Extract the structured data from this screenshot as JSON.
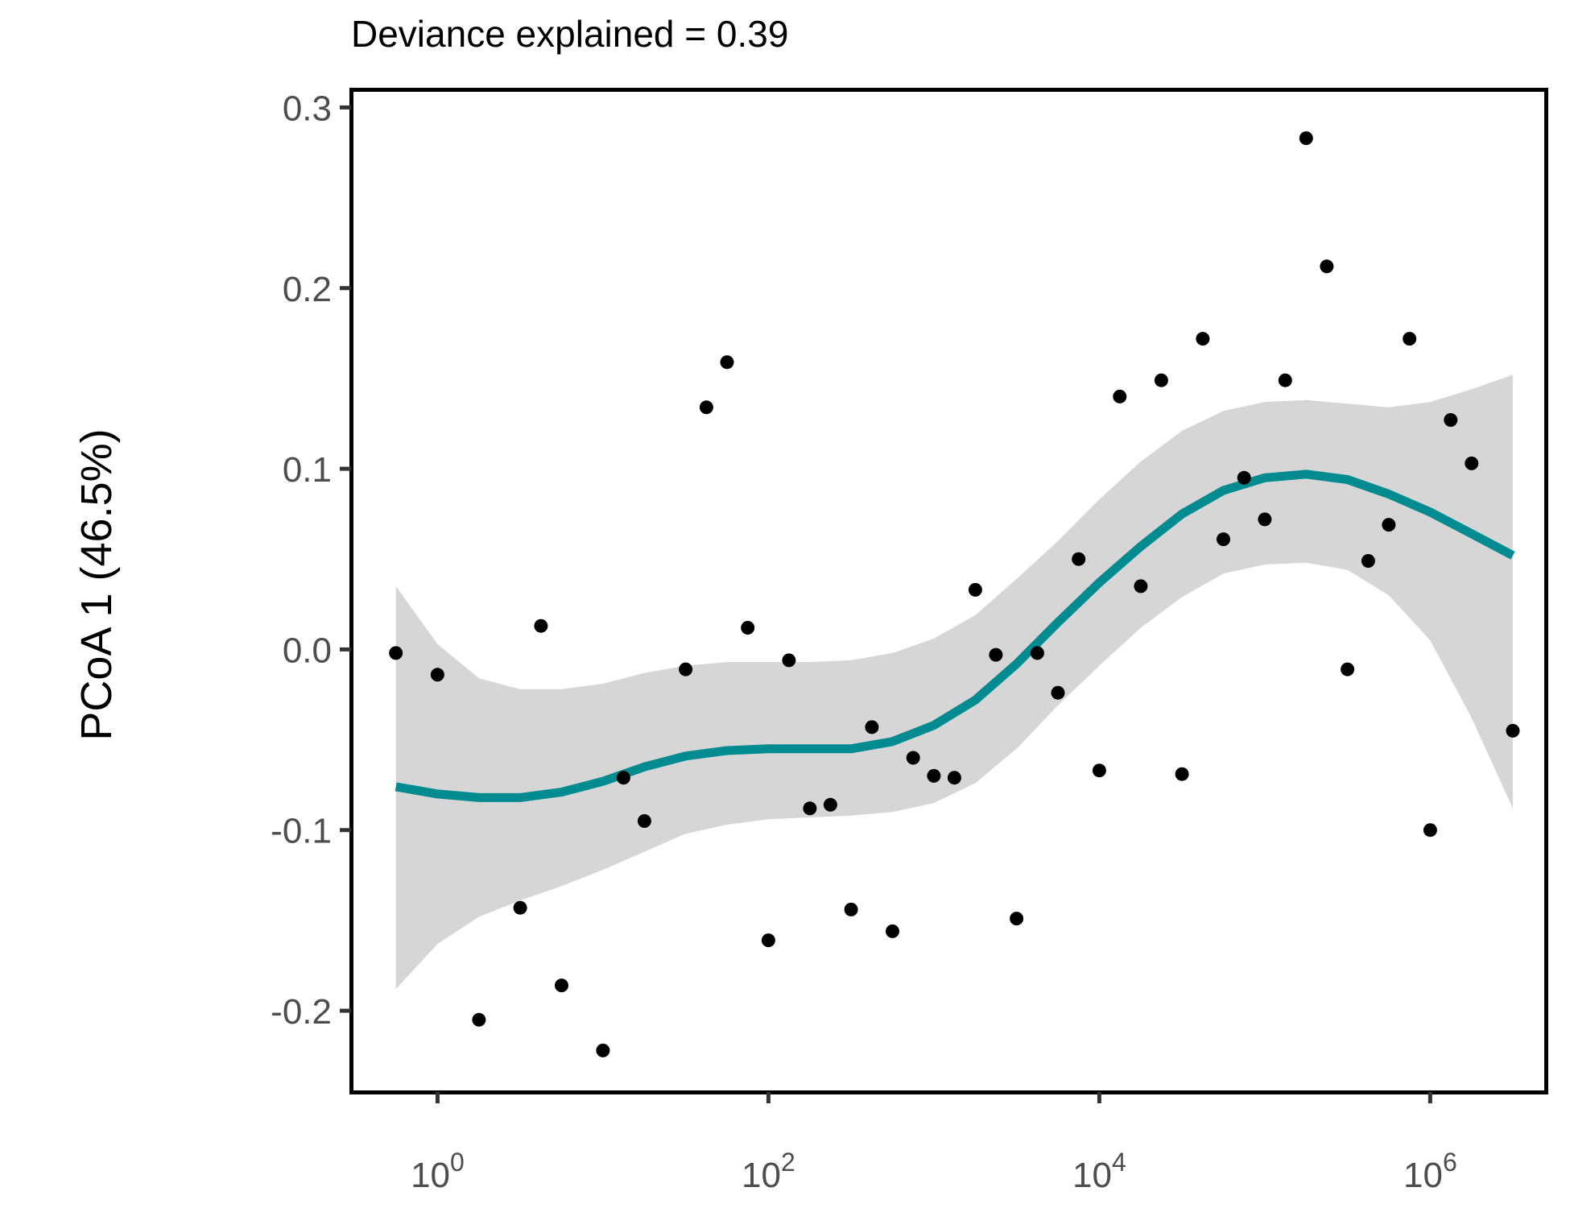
{
  "chart_data": {
    "type": "scatter",
    "title": "Deviance explained = 0.39",
    "xlabel": "",
    "ylabel": "PCoA 1 (46.5%)",
    "x_scale": "log10",
    "xlim": [
      0.3,
      5000000
    ],
    "ylim": [
      -0.245,
      0.31
    ],
    "x_ticks": [
      {
        "value": 1,
        "base": "10",
        "exp": "0"
      },
      {
        "value": 100,
        "base": "10",
        "exp": "2"
      },
      {
        "value": 10000,
        "base": "10",
        "exp": "4"
      },
      {
        "value": 1000000,
        "base": "10",
        "exp": "6"
      }
    ],
    "y_ticks": [
      {
        "value": 0.3,
        "label": "0.3"
      },
      {
        "value": 0.2,
        "label": "0.2"
      },
      {
        "value": 0.1,
        "label": "0.1"
      },
      {
        "value": 0.0,
        "label": "0.0"
      },
      {
        "value": -0.1,
        "label": "-0.1"
      },
      {
        "value": -0.2,
        "label": "-0.2"
      }
    ],
    "grid": false,
    "colors": {
      "points": "#000000",
      "smooth_line": "#008b91",
      "confidence_band": "#d6d6d6",
      "frame": "#000000",
      "tick_label": "#4d4d4d"
    },
    "points": [
      {
        "x": 0.56,
        "y": -0.002
      },
      {
        "x": 1.0,
        "y": -0.014
      },
      {
        "x": 1.78,
        "y": -0.205
      },
      {
        "x": 3.16,
        "y": -0.143
      },
      {
        "x": 4.22,
        "y": 0.013
      },
      {
        "x": 5.62,
        "y": -0.186
      },
      {
        "x": 10.0,
        "y": -0.222
      },
      {
        "x": 13.3,
        "y": -0.071
      },
      {
        "x": 17.8,
        "y": -0.095
      },
      {
        "x": 31.6,
        "y": -0.011
      },
      {
        "x": 42.2,
        "y": 0.134
      },
      {
        "x": 56.2,
        "y": 0.159
      },
      {
        "x": 75.0,
        "y": 0.012
      },
      {
        "x": 100,
        "y": -0.161
      },
      {
        "x": 133,
        "y": -0.006
      },
      {
        "x": 178,
        "y": -0.088
      },
      {
        "x": 237,
        "y": -0.086
      },
      {
        "x": 316,
        "y": -0.144
      },
      {
        "x": 422,
        "y": -0.043
      },
      {
        "x": 562,
        "y": -0.156
      },
      {
        "x": 750,
        "y": -0.06
      },
      {
        "x": 1000,
        "y": -0.07
      },
      {
        "x": 1330,
        "y": -0.071
      },
      {
        "x": 1780,
        "y": 0.033
      },
      {
        "x": 2370,
        "y": -0.003
      },
      {
        "x": 3160,
        "y": -0.149
      },
      {
        "x": 4220,
        "y": -0.002
      },
      {
        "x": 5620,
        "y": -0.024
      },
      {
        "x": 7500,
        "y": 0.05
      },
      {
        "x": 10000,
        "y": -0.067
      },
      {
        "x": 13300,
        "y": 0.14
      },
      {
        "x": 17800,
        "y": 0.035
      },
      {
        "x": 23700,
        "y": 0.149
      },
      {
        "x": 31600,
        "y": -0.069
      },
      {
        "x": 42200,
        "y": 0.172
      },
      {
        "x": 56200,
        "y": 0.061
      },
      {
        "x": 75000,
        "y": 0.095
      },
      {
        "x": 100000,
        "y": 0.072
      },
      {
        "x": 133000,
        "y": 0.149
      },
      {
        "x": 178000,
        "y": 0.283
      },
      {
        "x": 237000,
        "y": 0.212
      },
      {
        "x": 316000,
        "y": -0.011
      },
      {
        "x": 422000,
        "y": 0.049
      },
      {
        "x": 562000,
        "y": 0.069
      },
      {
        "x": 750000,
        "y": 0.172
      },
      {
        "x": 1000000,
        "y": -0.1
      },
      {
        "x": 1330000,
        "y": 0.127
      },
      {
        "x": 1780000,
        "y": 0.103
      },
      {
        "x": 3160000,
        "y": -0.045
      }
    ],
    "smooth": {
      "x": [
        0.56,
        1.0,
        1.78,
        3.16,
        5.62,
        10.0,
        17.8,
        31.6,
        56.2,
        100,
        178,
        316,
        562,
        1000,
        1780,
        3160,
        5620,
        10000,
        17800,
        31600,
        56200,
        100000,
        178000,
        316000,
        562000,
        1000000,
        1780000,
        3160000
      ],
      "y": [
        -0.076,
        -0.08,
        -0.082,
        -0.082,
        -0.079,
        -0.073,
        -0.065,
        -0.059,
        -0.056,
        -0.055,
        -0.055,
        -0.055,
        -0.051,
        -0.042,
        -0.028,
        -0.008,
        0.015,
        0.037,
        0.057,
        0.075,
        0.088,
        0.095,
        0.097,
        0.094,
        0.086,
        0.076,
        0.064,
        0.052
      ],
      "upper": [
        0.035,
        0.003,
        -0.016,
        -0.022,
        -0.022,
        -0.019,
        -0.013,
        -0.009,
        -0.007,
        -0.007,
        -0.007,
        -0.006,
        -0.002,
        0.006,
        0.019,
        0.039,
        0.06,
        0.083,
        0.104,
        0.121,
        0.132,
        0.137,
        0.138,
        0.136,
        0.134,
        0.137,
        0.144,
        0.152
      ],
      "lower": [
        -0.188,
        -0.163,
        -0.148,
        -0.139,
        -0.131,
        -0.122,
        -0.112,
        -0.102,
        -0.097,
        -0.094,
        -0.093,
        -0.092,
        -0.09,
        -0.085,
        -0.074,
        -0.055,
        -0.031,
        -0.009,
        0.012,
        0.029,
        0.042,
        0.047,
        0.048,
        0.044,
        0.03,
        0.005,
        -0.038,
        -0.088
      ]
    }
  }
}
